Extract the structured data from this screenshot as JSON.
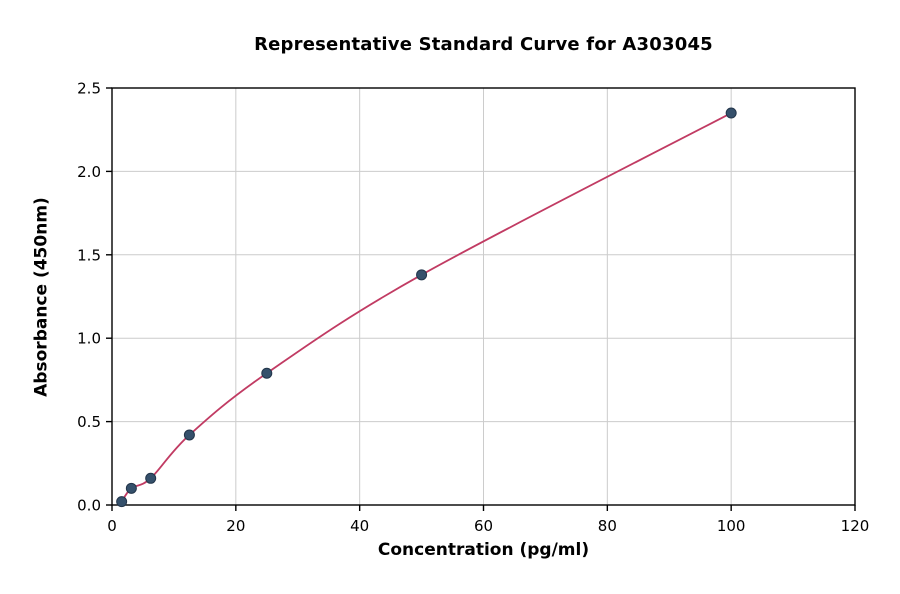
{
  "chart_data": {
    "type": "scatter",
    "title": "Representative Standard Curve for A303045",
    "xlabel": "Concentration (pg/ml)",
    "ylabel": "Absorbance (450nm)",
    "xlim": [
      0,
      120
    ],
    "ylim": [
      0,
      2.5
    ],
    "xticks": [
      0,
      20,
      40,
      60,
      80,
      100,
      120
    ],
    "yticks": [
      0.0,
      0.5,
      1.0,
      1.5,
      2.0,
      2.5
    ],
    "grid": true,
    "legend": "none",
    "points": {
      "x": [
        1.56,
        3.125,
        6.25,
        12.5,
        25,
        50,
        100
      ],
      "y": [
        0.02,
        0.1,
        0.16,
        0.42,
        0.79,
        1.38,
        2.35
      ]
    },
    "fit": "smooth curve through points",
    "colors": {
      "point": "#35506b",
      "point_edge": "#22354a",
      "line": "#c13b63",
      "grid": "#cccccc",
      "axis": "#000000"
    }
  }
}
